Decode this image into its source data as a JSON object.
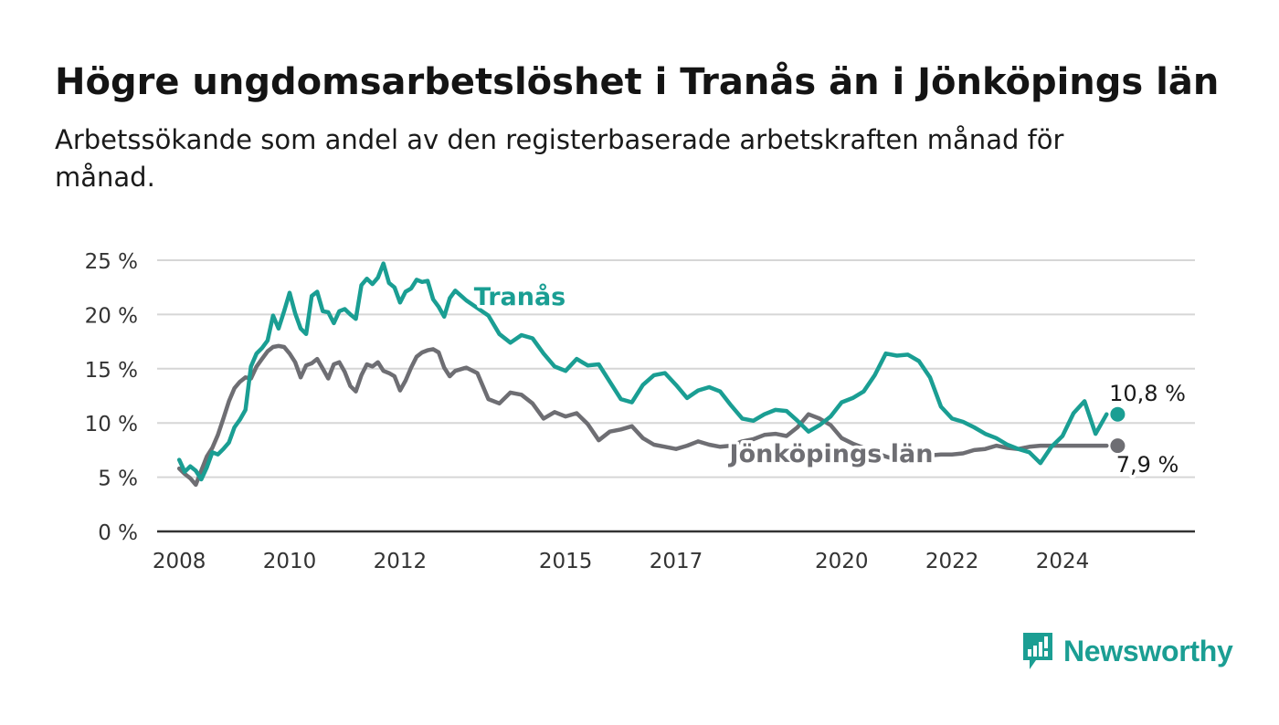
{
  "title": "Högre ungdomsarbetslöshet i Tranås än i Jönköpings län",
  "subtitle": "Arbetssökande som andel av den registerbaserade arbetskraften månad för månad.",
  "brand": {
    "name": "Newsworthy",
    "icon": "newsworthy-logo-icon",
    "color": "#1b9e93"
  },
  "chart_data": {
    "type": "line",
    "x_axis": {
      "range": [
        2007.6,
        2026.4
      ],
      "ticks": [
        2008,
        2010,
        2012,
        2015,
        2017,
        2020,
        2022,
        2024
      ],
      "tick_labels": [
        "2008",
        "2010",
        "2012",
        "2015",
        "2017",
        "2020",
        "2022",
        "2024"
      ]
    },
    "y_axis": {
      "range": [
        0,
        25
      ],
      "ticks": [
        0,
        5,
        10,
        15,
        20,
        25
      ],
      "tick_labels": [
        "0 %",
        "5 %",
        "10 %",
        "15 %",
        "20 %",
        "25 %"
      ],
      "grid": true
    },
    "series": [
      {
        "name": "Tranås",
        "color": "#1a9e93",
        "end_label": "10,8 %",
        "x": [
          2008.0,
          2008.1,
          2008.2,
          2008.3,
          2008.4,
          2008.5,
          2008.6,
          2008.7,
          2008.8,
          2008.9,
          2009.0,
          2009.1,
          2009.2,
          2009.3,
          2009.4,
          2009.5,
          2009.6,
          2009.7,
          2009.8,
          2009.9,
          2010.0,
          2010.1,
          2010.2,
          2010.3,
          2010.4,
          2010.5,
          2010.6,
          2010.7,
          2010.8,
          2010.9,
          2011.0,
          2011.1,
          2011.2,
          2011.3,
          2011.4,
          2011.5,
          2011.6,
          2011.7,
          2011.8,
          2011.9,
          2012.0,
          2012.1,
          2012.2,
          2012.3,
          2012.4,
          2012.5,
          2012.6,
          2012.7,
          2012.8,
          2012.9,
          2013.0,
          2013.2,
          2013.4,
          2013.6,
          2013.8,
          2014.0,
          2014.2,
          2014.4,
          2014.6,
          2014.8,
          2015.0,
          2015.2,
          2015.4,
          2015.6,
          2015.8,
          2016.0,
          2016.2,
          2016.4,
          2016.6,
          2016.8,
          2017.0,
          2017.2,
          2017.4,
          2017.6,
          2017.8,
          2018.0,
          2018.2,
          2018.4,
          2018.6,
          2018.8,
          2019.0,
          2019.2,
          2019.4,
          2019.6,
          2019.8,
          2020.0,
          2020.2,
          2020.4,
          2020.6,
          2020.8,
          2021.0,
          2021.2,
          2021.4,
          2021.6,
          2021.8,
          2022.0,
          2022.2,
          2022.4,
          2022.6,
          2022.8,
          2023.0,
          2023.2,
          2023.4,
          2023.6,
          2023.8,
          2024.0,
          2024.2,
          2024.4,
          2024.6,
          2024.8
        ],
        "y": [
          6.6,
          5.5,
          6.0,
          5.6,
          4.8,
          5.9,
          7.3,
          7.1,
          7.6,
          8.2,
          9.6,
          10.3,
          11.2,
          15.2,
          16.4,
          16.9,
          17.6,
          19.9,
          18.7,
          20.3,
          22.0,
          20.1,
          18.7,
          18.2,
          21.7,
          22.1,
          20.3,
          20.2,
          19.2,
          20.3,
          20.5,
          20.0,
          19.6,
          22.7,
          23.3,
          22.8,
          23.4,
          24.7,
          22.9,
          22.5,
          21.1,
          22.1,
          22.4,
          23.2,
          23.0,
          23.1,
          21.4,
          20.7,
          19.8,
          21.5,
          22.2,
          21.3,
          20.6,
          19.9,
          18.2,
          17.4,
          18.1,
          17.8,
          16.4,
          15.2,
          14.8,
          15.9,
          15.3,
          15.4,
          13.8,
          12.2,
          11.9,
          13.5,
          14.4,
          14.6,
          13.5,
          12.3,
          13.0,
          13.3,
          12.9,
          11.6,
          10.4,
          10.2,
          10.8,
          11.2,
          11.1,
          10.2,
          9.2,
          9.8,
          10.6,
          11.9,
          12.3,
          12.9,
          14.4,
          16.4,
          16.2,
          16.3,
          15.7,
          14.2,
          11.5,
          10.4,
          10.1,
          9.6,
          9.0,
          8.6,
          8.0,
          7.6,
          7.3,
          6.3,
          7.8,
          8.8,
          10.9,
          12.0,
          9.0,
          10.8
        ]
      },
      {
        "name": "Jönköpings län",
        "color": "#6e6e73",
        "end_label": "7,9 %",
        "x": [
          2008.0,
          2008.1,
          2008.2,
          2008.3,
          2008.4,
          2008.5,
          2008.6,
          2008.7,
          2008.8,
          2008.9,
          2009.0,
          2009.1,
          2009.2,
          2009.3,
          2009.4,
          2009.5,
          2009.6,
          2009.7,
          2009.8,
          2009.9,
          2010.0,
          2010.1,
          2010.2,
          2010.3,
          2010.4,
          2010.5,
          2010.6,
          2010.7,
          2010.8,
          2010.9,
          2011.0,
          2011.1,
          2011.2,
          2011.3,
          2011.4,
          2011.5,
          2011.6,
          2011.7,
          2011.8,
          2011.9,
          2012.0,
          2012.1,
          2012.2,
          2012.3,
          2012.4,
          2012.5,
          2012.6,
          2012.7,
          2012.8,
          2012.9,
          2013.0,
          2013.2,
          2013.4,
          2013.6,
          2013.8,
          2014.0,
          2014.2,
          2014.4,
          2014.6,
          2014.8,
          2015.0,
          2015.2,
          2015.4,
          2015.6,
          2015.8,
          2016.0,
          2016.2,
          2016.4,
          2016.6,
          2016.8,
          2017.0,
          2017.2,
          2017.4,
          2017.6,
          2017.8,
          2018.0,
          2018.2,
          2018.4,
          2018.6,
          2018.8,
          2019.0,
          2019.2,
          2019.4,
          2019.6,
          2019.8,
          2020.0,
          2020.2,
          2020.4,
          2020.6,
          2020.8,
          2021.0,
          2021.2,
          2021.4,
          2021.6,
          2021.8,
          2022.0,
          2022.2,
          2022.4,
          2022.6,
          2022.8,
          2023.0,
          2023.2,
          2023.4,
          2023.6,
          2023.8,
          2024.0,
          2024.2,
          2024.4,
          2024.6,
          2024.8
        ],
        "y": [
          5.8,
          5.3,
          4.9,
          4.3,
          5.6,
          6.9,
          7.7,
          8.9,
          10.4,
          12.0,
          13.2,
          13.8,
          14.2,
          14.1,
          15.2,
          15.9,
          16.6,
          17.0,
          17.1,
          17.0,
          16.4,
          15.6,
          14.2,
          15.3,
          15.5,
          15.9,
          15.0,
          14.1,
          15.4,
          15.6,
          14.7,
          13.4,
          12.9,
          14.4,
          15.4,
          15.2,
          15.6,
          14.8,
          14.6,
          14.3,
          13.0,
          13.9,
          15.1,
          16.1,
          16.5,
          16.7,
          16.8,
          16.5,
          15.1,
          14.3,
          14.8,
          15.1,
          14.6,
          12.2,
          11.8,
          12.8,
          12.6,
          11.8,
          10.4,
          11.0,
          10.6,
          10.9,
          9.9,
          8.4,
          9.2,
          9.4,
          9.7,
          8.6,
          8.0,
          7.8,
          7.6,
          7.9,
          8.3,
          8.0,
          7.8,
          7.9,
          8.3,
          8.5,
          8.9,
          9.0,
          8.8,
          9.6,
          10.8,
          10.4,
          9.8,
          8.6,
          8.1,
          7.7,
          7.3,
          6.9,
          6.6,
          6.6,
          6.8,
          7.0,
          7.1,
          7.1,
          7.2,
          7.5,
          7.6,
          7.9,
          7.7,
          7.6,
          7.8,
          7.9,
          7.9,
          7.9,
          7.9,
          7.9,
          7.9,
          7.9
        ]
      }
    ]
  }
}
